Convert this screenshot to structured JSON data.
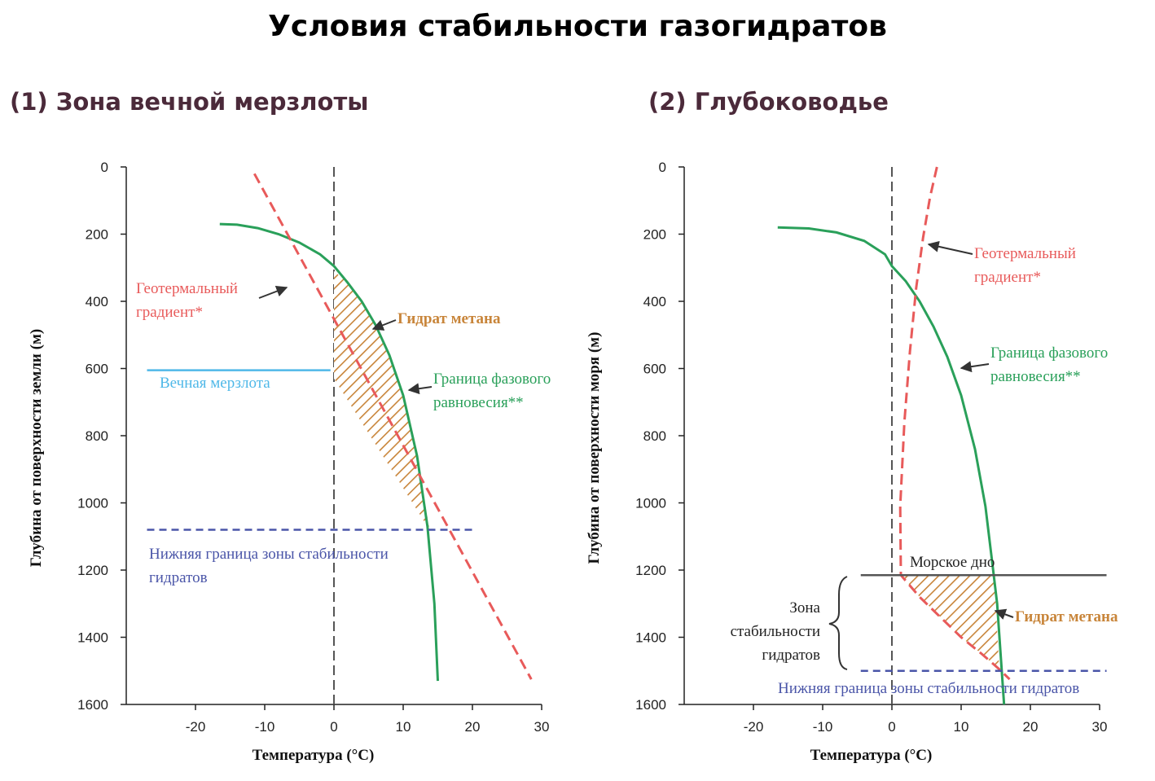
{
  "title": "Условия стабильности газогидратов",
  "colors": {
    "geotherm": "#e85a5a",
    "phase": "#2aa05a",
    "permafrost": "#4fb8e8",
    "bsr": "#4a55a8",
    "hydrate": "#c8853a",
    "dash_zero": "#555555",
    "seafloor": "#555555",
    "text_dark": "#222222"
  },
  "chart_data": [
    {
      "type": "line",
      "title": "(1) Зона вечной мерзлоты",
      "xlabel": "Температура (°C)",
      "ylabel": "Глубина от поверхности земли (м)",
      "xlim": [
        -30,
        30
      ],
      "ylim": [
        0,
        1600
      ],
      "y_inverted": true,
      "xticks": [
        "-20",
        "-10",
        "0",
        "10",
        "20",
        "30"
      ],
      "yticks": [
        "0",
        "200",
        "400",
        "600",
        "800",
        "1000",
        "1200",
        "1400",
        "1600"
      ],
      "series": [
        {
          "name": "Граница фазового равновесия**",
          "x": [
            -16.5,
            -14,
            -11,
            -8,
            -5,
            -2,
            0,
            2,
            4,
            6,
            8,
            10,
            12,
            13.5,
            14.5,
            15
          ],
          "y": [
            170,
            172,
            182,
            200,
            225,
            260,
            295,
            345,
            400,
            470,
            560,
            680,
            860,
            1070,
            1300,
            1530
          ]
        },
        {
          "name": "Геотермальный градиент*",
          "x": [
            -11.5,
            28.5
          ],
          "y": [
            20,
            1525
          ]
        }
      ],
      "permafrost_depth": 605,
      "permafrost_x": [
        -27,
        -0.5
      ],
      "bsr_depth": 1080,
      "bsr_x": [
        -27,
        20.5
      ],
      "hydrate_zone": {
        "upper_x": [
          0,
          2,
          4,
          6,
          8,
          10,
          12,
          13.8
        ],
        "upper_y": [
          310,
          345,
          400,
          470,
          560,
          680,
          860,
          1080
        ],
        "lower_x": [
          13.8,
          0
        ],
        "lower_y": [
          1080,
          630
        ]
      },
      "annotations": {
        "geotherm": [
          "Геотермальный",
          "градиент*"
        ],
        "hydrate": "Гидрат метана",
        "phase": [
          "Граница фазового",
          "равновесия**"
        ],
        "permafrost": "Вечная мерзлота",
        "bsr": [
          "Нижняя граница зоны стабильности",
          "гидратов"
        ]
      }
    },
    {
      "type": "line",
      "title": "(2) Глубоководье",
      "xlabel": "Температура (°C)",
      "ylabel": "Глубина от поверхности моря (м)",
      "xlim": [
        -30,
        30
      ],
      "ylim": [
        0,
        1600
      ],
      "y_inverted": true,
      "xticks": [
        "-20",
        "-10",
        "0",
        "10",
        "20",
        "30"
      ],
      "yticks": [
        "0",
        "200",
        "400",
        "600",
        "800",
        "1000",
        "1200",
        "1400",
        "1600"
      ],
      "series": [
        {
          "name": "Граница фазового равновесия**",
          "x": [
            -16.5,
            -12,
            -8,
            -4,
            -1,
            0,
            2,
            4,
            6,
            8,
            10,
            12,
            13.5,
            14.5,
            15.2,
            16.2
          ],
          "y": [
            180,
            183,
            195,
            220,
            260,
            295,
            340,
            400,
            475,
            565,
            680,
            840,
            1010,
            1180,
            1300,
            1600
          ]
        },
        {
          "name": "Геотермальный градиент*",
          "x": [
            6.5,
            5.5,
            4.5,
            3.5,
            2.6,
            1.8,
            1.2,
            1.3,
            4,
            7,
            10,
            13,
            15.5,
            17
          ],
          "y": [
            0,
            90,
            210,
            360,
            550,
            760,
            1010,
            1215,
            1280,
            1340,
            1400,
            1450,
            1495,
            1525
          ]
        }
      ],
      "seafloor_depth": 1215,
      "seafloor_x": [
        -4.5,
        31
      ],
      "bsr_depth": 1500,
      "bsr_x": [
        -4.5,
        31
      ],
      "hydrate_zone": {
        "upper_x": [
          1.3,
          14.6,
          15.0,
          15.5
        ],
        "upper_y": [
          1215,
          1215,
          1300,
          1495
        ],
        "lower_x": [
          15.5,
          13,
          10,
          7,
          4,
          1.3
        ],
        "lower_y": [
          1495,
          1450,
          1400,
          1340,
          1280,
          1215
        ]
      },
      "annotations": {
        "geotherm": [
          "Геотермальный",
          "градиент*"
        ],
        "phase": [
          "Граница фазового",
          "равновесия**"
        ],
        "seafloor": "Морское дно",
        "zone": [
          "Зона",
          "стабильности",
          "гидратов"
        ],
        "hydrate": "Гидрат метана",
        "bsr": "Нижняя граница зоны стабильности гидратов"
      }
    }
  ]
}
